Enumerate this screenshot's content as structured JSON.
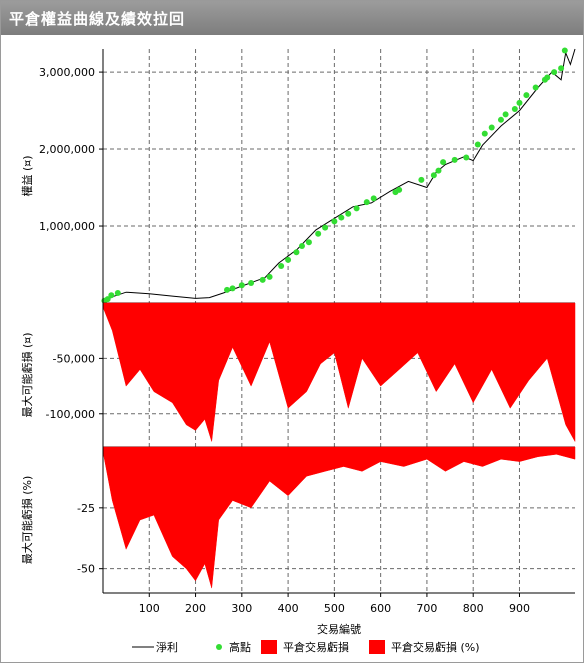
{
  "window": {
    "title": "平倉權益曲線及績效拉回"
  },
  "chart_data": [
    {
      "type": "line",
      "ylabel": "權益 (¤)",
      "ylim": [
        0,
        3300000
      ],
      "yticks": [
        1000000,
        2000000,
        3000000
      ],
      "ytick_labels": [
        "1,000,000",
        "2,000,000",
        "3,000,000"
      ],
      "grid": true,
      "series": [
        {
          "name": "淨利",
          "color": "#000000",
          "x": [
            1,
            20,
            50,
            100,
            150,
            200,
            230,
            260,
            300,
            350,
            380,
            420,
            460,
            500,
            540,
            580,
            620,
            660,
            700,
            720,
            740,
            780,
            800,
            820,
            860,
            900,
            940,
            970,
            990,
            1000,
            1010,
            1020
          ],
          "values": [
            20000,
            80000,
            140000,
            120000,
            90000,
            60000,
            70000,
            130000,
            220000,
            330000,
            520000,
            700000,
            950000,
            1100000,
            1250000,
            1300000,
            1450000,
            1580000,
            1500000,
            1700000,
            1800000,
            1900000,
            1850000,
            2050000,
            2300000,
            2500000,
            2800000,
            3000000,
            2900000,
            3250000,
            3100000,
            3300000
          ]
        },
        {
          "name": "高點",
          "color": "#33dd33",
          "x": [
            3,
            10,
            18,
            32,
            268,
            280,
            300,
            320,
            345,
            360,
            385,
            400,
            418,
            430,
            445,
            465,
            480,
            500,
            515,
            530,
            548,
            570,
            585,
            632,
            640,
            688,
            715,
            725,
            735,
            760,
            785,
            810,
            825,
            840,
            860,
            870,
            890,
            900,
            915,
            935,
            955,
            960,
            975,
            990,
            998
          ],
          "values": [
            30000,
            50000,
            100000,
            130000,
            170000,
            190000,
            230000,
            260000,
            300000,
            340000,
            480000,
            560000,
            660000,
            740000,
            790000,
            900000,
            980000,
            1060000,
            1110000,
            1160000,
            1230000,
            1310000,
            1360000,
            1440000,
            1470000,
            1600000,
            1660000,
            1720000,
            1830000,
            1860000,
            1890000,
            2060000,
            2200000,
            2280000,
            2380000,
            2450000,
            2520000,
            2600000,
            2700000,
            2800000,
            2900000,
            2930000,
            3000000,
            3050000,
            3280000
          ]
        }
      ]
    },
    {
      "type": "area",
      "ylabel": "最大可能虧損 (¤)",
      "ylim": [
        -130000,
        0
      ],
      "yticks": [
        -50000,
        -100000
      ],
      "ytick_labels": [
        "-50,000",
        "-100,000"
      ],
      "grid": true,
      "series": [
        {
          "name": "平倉交易虧損",
          "color": "#ff0000",
          "x": [
            1,
            20,
            50,
            80,
            110,
            150,
            180,
            200,
            220,
            235,
            250,
            280,
            320,
            360,
            400,
            440,
            470,
            500,
            530,
            560,
            600,
            640,
            680,
            720,
            760,
            800,
            840,
            880,
            920,
            960,
            1000,
            1020
          ],
          "values": [
            -5000,
            -25000,
            -75000,
            -60000,
            -80000,
            -90000,
            -110000,
            -115000,
            -105000,
            -125000,
            -70000,
            -40000,
            -75000,
            -35000,
            -95000,
            -80000,
            -55000,
            -45000,
            -95000,
            -50000,
            -75000,
            -60000,
            -45000,
            -80000,
            -55000,
            -90000,
            -60000,
            -95000,
            -70000,
            -50000,
            -110000,
            -125000
          ]
        }
      ]
    },
    {
      "type": "area",
      "ylabel": "最大可能虧損 (%)",
      "ylim": [
        -60,
        0
      ],
      "yticks": [
        -25,
        -50
      ],
      "ytick_labels": [
        "-25",
        "-50"
      ],
      "xlabel": "交易編號",
      "xlim": [
        0,
        1020
      ],
      "xticks": [
        100,
        200,
        300,
        400,
        500,
        600,
        700,
        800,
        900
      ],
      "grid": true,
      "series": [
        {
          "name": "平倉交易虧損 (%)",
          "color": "#ff0000",
          "x": [
            1,
            20,
            50,
            80,
            110,
            150,
            180,
            200,
            220,
            235,
            250,
            280,
            320,
            360,
            400,
            440,
            480,
            520,
            560,
            600,
            650,
            700,
            740,
            780,
            820,
            860,
            900,
            940,
            980,
            1020
          ],
          "values": [
            -3,
            -22,
            -42,
            -30,
            -28,
            -45,
            -50,
            -55,
            -48,
            -58,
            -30,
            -22,
            -25,
            -14,
            -20,
            -12,
            -10,
            -8,
            -10,
            -6,
            -8,
            -5,
            -10,
            -6,
            -8,
            -5,
            -6,
            -4,
            -3,
            -5
          ]
        }
      ]
    }
  ],
  "legend": [
    {
      "label": "淨利",
      "marker": "line",
      "color": "#000000"
    },
    {
      "label": "高點",
      "marker": "dot",
      "color": "#33dd33"
    },
    {
      "label": "平倉交易虧損",
      "marker": "box",
      "color": "#ff0000"
    },
    {
      "label": "平倉交易虧損 (%)",
      "marker": "box",
      "color": "#ff0000"
    }
  ]
}
